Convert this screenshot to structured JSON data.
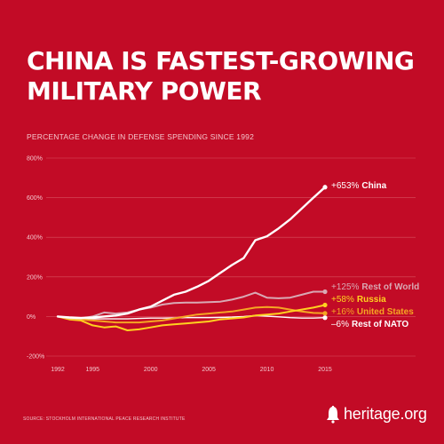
{
  "header": {
    "title_line1": "CHINA IS FASTEST-GROWING",
    "title_line2": "MILITARY POWER",
    "subtitle": "PERCENTAGE CHANGE IN DEFENSE SPENDING SINCE 1992"
  },
  "footer": {
    "source": "SOURCE: STOCKHOLM INTERNATIONAL PEACE RESEARCH INSTITUTE",
    "logo": "heritage.org"
  },
  "colors": {
    "background": "#c20b26",
    "china": "#ffffff",
    "rest_of_world": "#d9a9b4",
    "russia": "#ffd21f",
    "united_states": "#f5a623",
    "rest_of_nato": "#ffffff"
  },
  "chart_data": {
    "type": "line",
    "title": "CHINA IS FASTEST-GROWING MILITARY POWER",
    "subtitle": "PERCENTAGE CHANGE IN DEFENSE SPENDING SINCE 1992",
    "xlabel": "",
    "ylabel": "",
    "xlim": [
      1992,
      2015
    ],
    "ylim": [
      -200,
      800
    ],
    "x_ticks": [
      "1992",
      "1995",
      "2000",
      "2005",
      "2010",
      "2015"
    ],
    "y_ticks": [
      "800%",
      "600%",
      "400%",
      "200%",
      "0%",
      "-200%"
    ],
    "grid": true,
    "legend_placement": "right-end-labels",
    "x": [
      1992,
      1993,
      1994,
      1995,
      1996,
      1997,
      1998,
      1999,
      2000,
      2001,
      2002,
      2003,
      2004,
      2005,
      2006,
      2007,
      2008,
      2009,
      2010,
      2011,
      2012,
      2013,
      2014,
      2015
    ],
    "series": [
      {
        "name": "China",
        "label_value": "+653%",
        "label_name": "China",
        "values": [
          0,
          -5,
          -8,
          -5,
          0,
          5,
          15,
          35,
          50,
          80,
          110,
          125,
          150,
          180,
          220,
          260,
          295,
          385,
          405,
          445,
          490,
          545,
          600,
          653
        ]
      },
      {
        "name": "Rest of World",
        "label_value": "+125%",
        "label_name": "Rest of World",
        "values": [
          0,
          -8,
          -10,
          0,
          20,
          15,
          20,
          35,
          45,
          60,
          68,
          70,
          70,
          72,
          75,
          85,
          100,
          120,
          95,
          92,
          95,
          110,
          125,
          125
        ]
      },
      {
        "name": "Russia",
        "label_value": "+58%",
        "label_name": "Russia",
        "values": [
          0,
          -15,
          -20,
          -45,
          -55,
          -50,
          -70,
          -65,
          -55,
          -45,
          -40,
          -35,
          -30,
          -25,
          -15,
          -10,
          -5,
          5,
          10,
          15,
          25,
          35,
          45,
          58
        ]
      },
      {
        "name": "United States",
        "label_value": "+16%",
        "label_name": "United States",
        "values": [
          0,
          -8,
          -15,
          -20,
          -25,
          -30,
          -30,
          -30,
          -25,
          -20,
          -10,
          0,
          10,
          15,
          20,
          25,
          35,
          45,
          48,
          45,
          35,
          25,
          18,
          16
        ]
      },
      {
        "name": "Rest of NATO",
        "label_value": "–6%",
        "label_name": "Rest of NATO",
        "values": [
          0,
          -5,
          -10,
          -12,
          -12,
          -12,
          -12,
          -10,
          -8,
          -8,
          -7,
          -6,
          -6,
          -6,
          -5,
          -3,
          0,
          5,
          2,
          -2,
          -6,
          -8,
          -8,
          -6
        ]
      }
    ]
  }
}
